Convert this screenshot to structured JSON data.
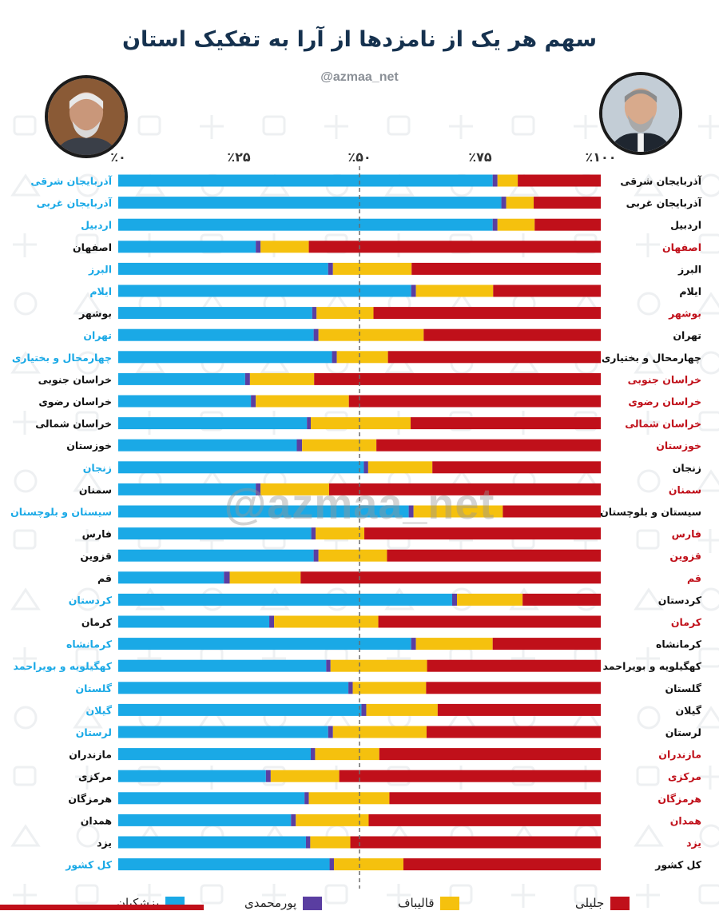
{
  "header": {
    "title": "سهم هر یک از نامزدها از آرا به تفکیک استان",
    "handle": "@azmaa_net"
  },
  "watermark": "@azmaa_net",
  "colors": {
    "pezeshkian": "#1aa9e6",
    "pourmohammadi": "#5a3ea1",
    "ghalibaf": "#f5c10e",
    "jalili": "#c0101a",
    "label_blue": "#1aa9e6",
    "label_red": "#c0101a",
    "label_dark": "#111111",
    "background_pattern": "#eef0f2"
  },
  "chart_data": {
    "type": "bar",
    "orientation": "horizontal",
    "stacked": true,
    "x_ticks": [
      "٪۰",
      "٪۲۵",
      "٪۵۰",
      "٪۷۵",
      "٪۱۰۰"
    ],
    "xlim": [
      0,
      100
    ],
    "reference_line": 50,
    "categories": [
      "آذربایجان شرقی",
      "آذربایجان غربی",
      "اردبیل",
      "اصفهان",
      "البرز",
      "ایلام",
      "بوشهر",
      "تهران",
      "چهارمحال و بختیاری",
      "خراسان جنوبی",
      "خراسان رضوی",
      "خراسان شمالی",
      "خوزستان",
      "زنجان",
      "سمنان",
      "سیستان و بلوچستان",
      "فارس",
      "قزوین",
      "قم",
      "کردستان",
      "کرمان",
      "کرمانشاه",
      "کهگیلویه و بویراحمد",
      "گلستان",
      "گیلان",
      "لرستان",
      "مازندران",
      "مرکزی",
      "هرمزگان",
      "همدان",
      "یزد",
      "کل کشور"
    ],
    "series": [
      {
        "name": "پزشکیان",
        "values": [
          77.6,
          79.4,
          77.6,
          28.5,
          43.5,
          60.7,
          40.2,
          40.5,
          44.3,
          26.3,
          27.5,
          39.1,
          37.0,
          50.9,
          28.5,
          60.2,
          40.0,
          40.5,
          21.9,
          69.2,
          31.3,
          60.7,
          43.1,
          47.7,
          50.4,
          43.5,
          39.9,
          30.6,
          38.6,
          35.8,
          38.9,
          43.8
        ]
      },
      {
        "name": "پورمحمدی",
        "values": [
          1.0,
          1.0,
          1.0,
          1.0,
          1.0,
          1.0,
          0.9,
          1.0,
          1.0,
          1.0,
          1.0,
          0.8,
          1.1,
          0.9,
          1.0,
          1.0,
          0.9,
          1.0,
          1.2,
          1.0,
          1.0,
          1.0,
          0.9,
          0.9,
          1.0,
          1.0,
          0.9,
          1.0,
          0.9,
          1.0,
          0.9,
          0.9
        ]
      },
      {
        "name": "قالیباف",
        "values": [
          4.2,
          5.7,
          7.7,
          10.0,
          16.3,
          16.0,
          11.8,
          21.8,
          10.6,
          13.3,
          19.3,
          20.7,
          15.4,
          13.3,
          14.2,
          18.5,
          10.1,
          14.2,
          14.7,
          13.6,
          21.6,
          15.9,
          20.0,
          15.2,
          14.8,
          19.4,
          13.3,
          14.2,
          16.7,
          15.1,
          8.3,
          14.4
        ]
      },
      {
        "name": "جلیلی",
        "values": [
          17.2,
          13.9,
          13.7,
          60.5,
          39.2,
          22.3,
          47.1,
          36.7,
          44.1,
          59.4,
          52.2,
          39.4,
          46.5,
          34.9,
          56.3,
          20.3,
          49.0,
          44.3,
          62.2,
          16.2,
          46.1,
          22.4,
          36.0,
          36.2,
          33.8,
          36.1,
          45.9,
          54.2,
          43.8,
          48.1,
          51.9,
          40.9
        ]
      }
    ],
    "legend": {
      "position": "bottom",
      "entries": [
        "پزشکیان",
        "پورمحمدی",
        "قالیباف",
        "جلیلی"
      ]
    }
  }
}
